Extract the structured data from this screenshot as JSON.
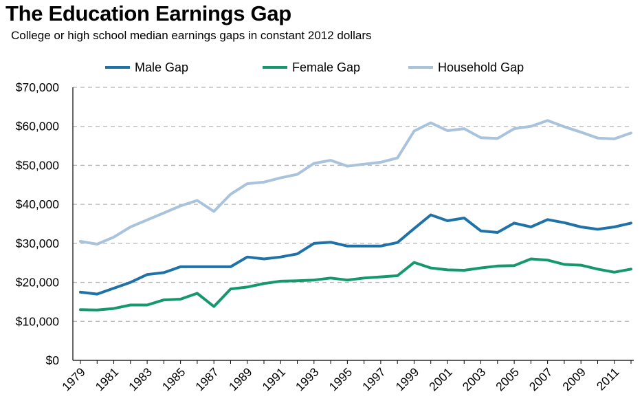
{
  "chart_data": {
    "type": "line",
    "title": "The Education Earnings Gap",
    "subtitle": "College or high school median earnings gaps in constant 2012 dollars",
    "xlabel": "",
    "ylabel": "",
    "ylim": [
      0,
      70000
    ],
    "yticks": [
      "$0",
      "$10,000",
      "$20,000",
      "$30,000",
      "$40,000",
      "$50,000",
      "$60,000",
      "$70,000"
    ],
    "ytick_values": [
      0,
      10000,
      20000,
      30000,
      40000,
      50000,
      60000,
      70000
    ],
    "grid": "horizontal dashed",
    "legend_position": "top",
    "x": [
      1979,
      1980,
      1981,
      1982,
      1983,
      1984,
      1985,
      1986,
      1987,
      1988,
      1989,
      1990,
      1991,
      1992,
      1993,
      1994,
      1995,
      1996,
      1997,
      1998,
      1999,
      2000,
      2001,
      2002,
      2003,
      2004,
      2005,
      2006,
      2007,
      2008,
      2009,
      2010,
      2011,
      2012
    ],
    "xtick_labels": [
      "1979",
      "1981",
      "1983",
      "1985",
      "1987",
      "1989",
      "1991",
      "1993",
      "1995",
      "1997",
      "1999",
      "2001",
      "2003",
      "2005",
      "2007",
      "2009",
      "2011"
    ],
    "series": [
      {
        "name": "Male Gap",
        "color": "#1f72a8",
        "values": [
          17500,
          17000,
          18500,
          20000,
          22000,
          22500,
          24000,
          24000,
          24000,
          24000,
          26500,
          26000,
          26500,
          27300,
          30000,
          30300,
          29300,
          29300,
          29300,
          30200,
          33800,
          37300,
          35800,
          36500,
          33200,
          32800,
          35200,
          34200,
          36100,
          35300,
          34200,
          33600,
          34200,
          35200
        ]
      },
      {
        "name": "Female Gap",
        "color": "#15996b",
        "values": [
          13000,
          12900,
          13300,
          14200,
          14200,
          15500,
          15700,
          17200,
          13800,
          18300,
          18800,
          19700,
          20300,
          20400,
          20600,
          21100,
          20600,
          21100,
          21400,
          21700,
          25100,
          23700,
          23200,
          23100,
          23700,
          24200,
          24300,
          26000,
          25700,
          24600,
          24400,
          23400,
          22600,
          23400
        ]
      },
      {
        "name": "Household Gap",
        "color": "#a9c3dc",
        "values": [
          30500,
          29800,
          31600,
          34200,
          36000,
          37800,
          39600,
          41000,
          38200,
          42600,
          45300,
          45700,
          46800,
          47700,
          50500,
          51300,
          49800,
          50300,
          50800,
          51900,
          58800,
          60900,
          58900,
          59400,
          57100,
          56900,
          59400,
          60000,
          61500,
          59900,
          58500,
          57000,
          56800,
          58300
        ]
      }
    ]
  }
}
